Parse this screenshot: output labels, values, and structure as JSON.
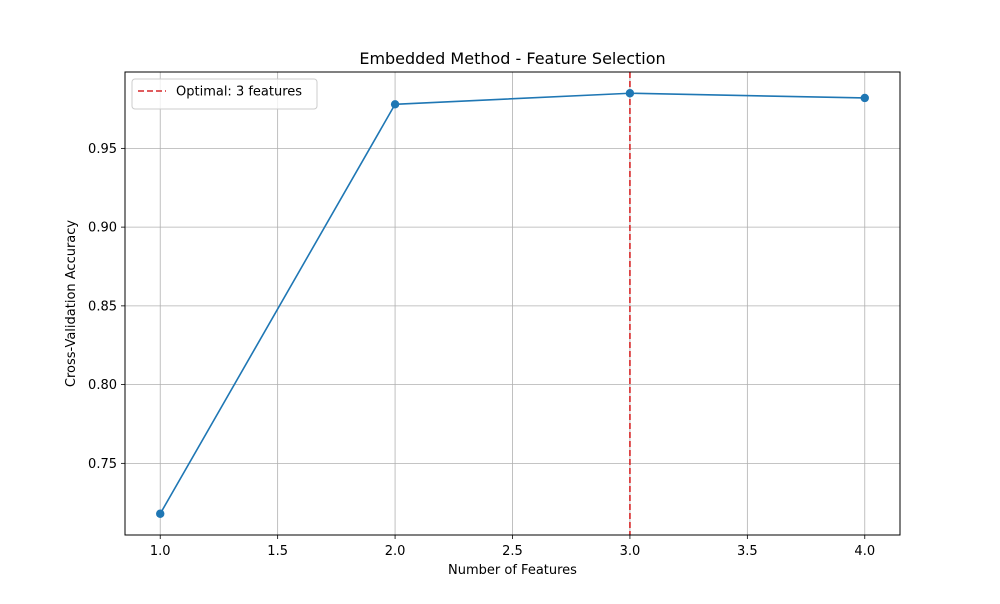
{
  "chart_data": {
    "type": "line",
    "title": "Embedded Method - Feature Selection",
    "xlabel": "Number of Features",
    "ylabel": "Cross-Validation Accuracy",
    "x": [
      1,
      2,
      3,
      4
    ],
    "series": [
      {
        "values": [
          0.718,
          0.978,
          0.985,
          0.982
        ],
        "color": "#1f77b4",
        "marker": "circle"
      }
    ],
    "xlim": [
      0.85,
      4.15
    ],
    "ylim": [
      0.7045,
      0.9985
    ],
    "x_ticks": [
      1.0,
      1.5,
      2.0,
      2.5,
      3.0,
      3.5,
      4.0
    ],
    "x_tick_labels": [
      "1.0",
      "1.5",
      "2.0",
      "2.5",
      "3.0",
      "3.5",
      "4.0"
    ],
    "y_ticks": [
      0.75,
      0.8,
      0.85,
      0.9,
      0.95
    ],
    "y_tick_labels": [
      "0.75",
      "0.80",
      "0.85",
      "0.90",
      "0.95"
    ],
    "grid": true,
    "reference_line": {
      "x": 3,
      "label": "Optimal: 3 features",
      "color": "#d62728",
      "style": "dashed"
    },
    "legend": {
      "position": "top-left",
      "entries": [
        "Optimal: 3 features"
      ]
    }
  }
}
